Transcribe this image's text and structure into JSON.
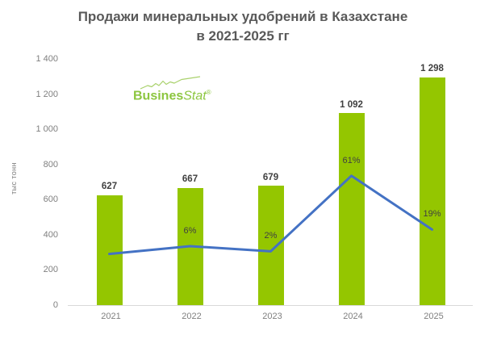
{
  "header": {
    "title_line1": "Продажи минеральных удобрений в Казахстане",
    "title_line2": "в 2021-2025 гг"
  },
  "logo": {
    "part1": "Busines",
    "part2": "Stat",
    "registered": "®",
    "color": "#8CC63F"
  },
  "chart_data": {
    "type": "bar",
    "title": "Продажи минеральных удобрений в Казахстане в 2021-2025 гг",
    "xlabel": "",
    "ylabel": "тыс тонн",
    "categories": [
      "2021",
      "2022",
      "2023",
      "2024",
      "2025"
    ],
    "series": [
      {
        "type": "bar",
        "values": [
          627,
          667,
          679,
          1092,
          1298
        ],
        "value_labels": [
          "627",
          "667",
          "679",
          "1 092",
          "1 298"
        ],
        "color": "#94C600"
      },
      {
        "type": "line",
        "axis": "secondary",
        "values": [
          null,
          6,
          2,
          61,
          19
        ],
        "value_labels": [
          "",
          "6%",
          "2%",
          "61%",
          "19%"
        ],
        "color": "#4472C4"
      }
    ],
    "primary_axis": {
      "min": 0,
      "max": 1400,
      "step": 200,
      "tick_labels": [
        "0",
        "200",
        "400",
        "600",
        "800",
        "1 000",
        "1 200",
        "1 400"
      ]
    },
    "secondary_axis": {
      "min": -40,
      "max": 152,
      "visible": false
    },
    "grid": false,
    "legend": false
  }
}
